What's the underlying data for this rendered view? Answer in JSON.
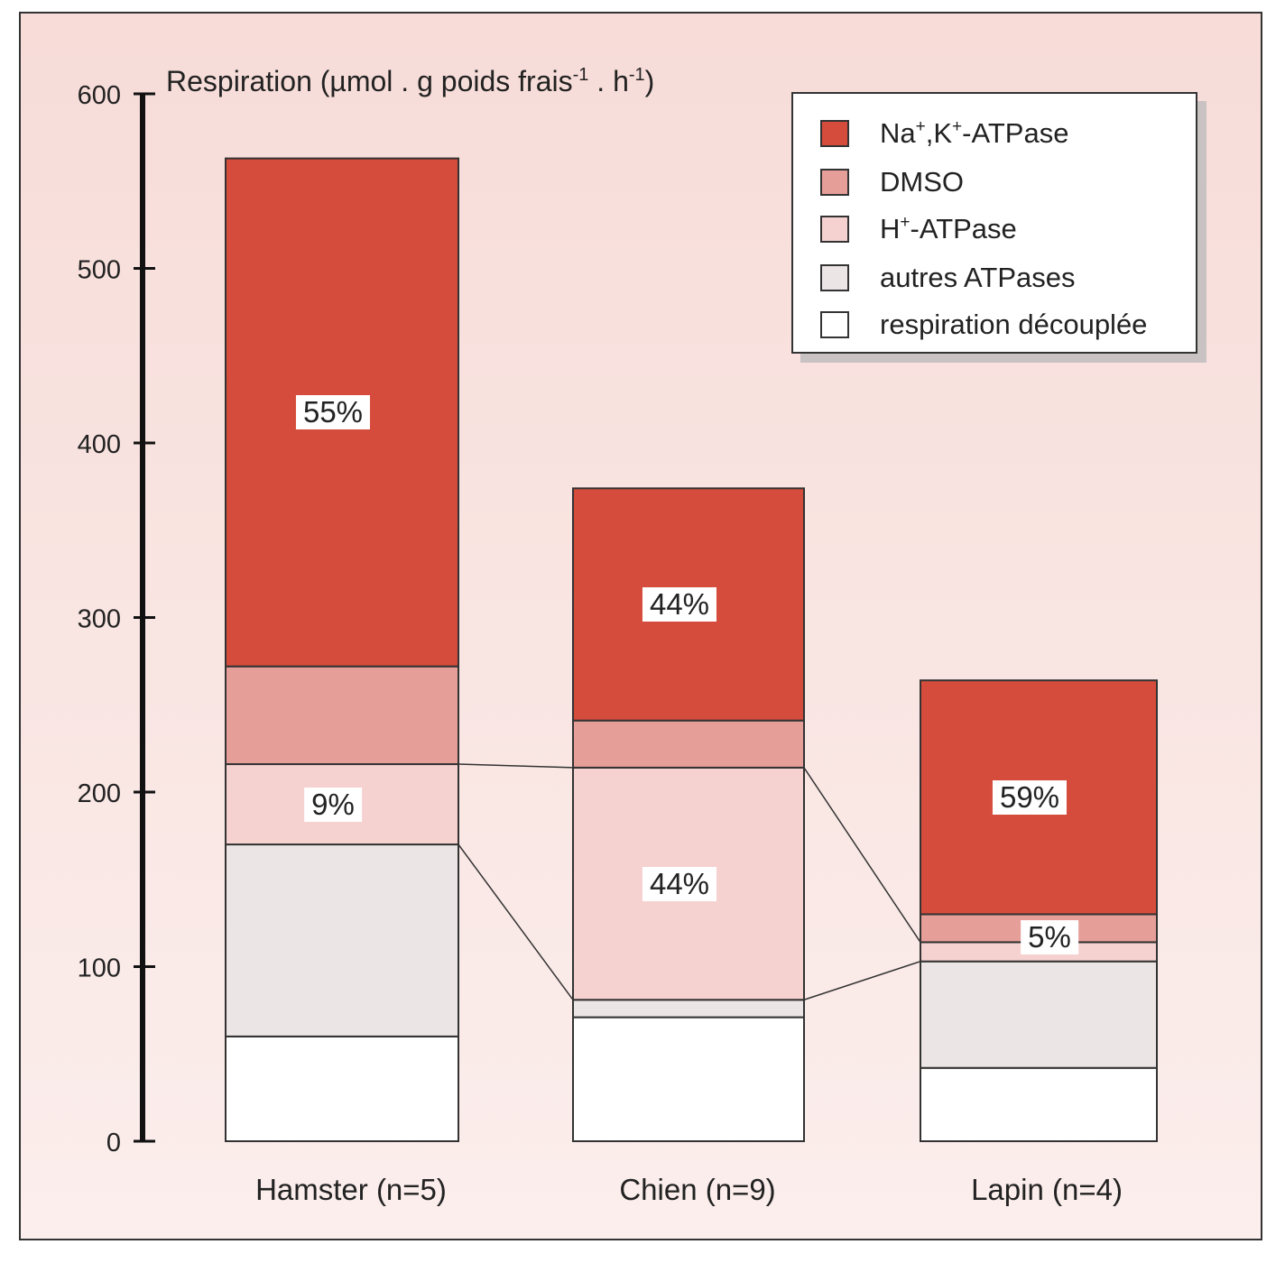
{
  "chart_data": {
    "type": "bar",
    "stacked": true,
    "ylabel": "Respiration (µmol . g poids frais-1 . h-1)",
    "ylabel_parts": [
      "Respiration (µmol . g poids frais",
      "-1",
      " . h",
      "-1",
      ")"
    ],
    "ylim": [
      0,
      600
    ],
    "yticks": [
      "0",
      "100",
      "200",
      "300",
      "400",
      "500",
      "600"
    ],
    "categories": [
      "Hamster (n=5)",
      "Chien (n=9)",
      "Lapin (n=4)"
    ],
    "series": [
      {
        "name": "respiration découplée",
        "name_parts": [
          "respiration découplée"
        ],
        "color": "#ffffff",
        "values": [
          60,
          71,
          42
        ]
      },
      {
        "name": "autres ATPases",
        "name_parts": [
          "autres ATPases"
        ],
        "color": "#ece5e5",
        "values": [
          110,
          10,
          61
        ]
      },
      {
        "name": "H+-ATPase",
        "name_parts": [
          "H",
          "+",
          "-ATPase"
        ],
        "color": "#f5d2d0",
        "values": [
          46,
          133,
          11
        ]
      },
      {
        "name": "DMSO",
        "name_parts": [
          "DMSO"
        ],
        "color": "#e59e98",
        "values": [
          56,
          27,
          16
        ]
      },
      {
        "name": "Na+,K+-ATPase",
        "name_parts": [
          "Na",
          "+",
          ",K",
          "+",
          "-ATPase"
        ],
        "color": "#d64c3c",
        "values": [
          291,
          133,
          134
        ]
      }
    ],
    "annotations": [
      {
        "category": 0,
        "series": 4,
        "text": "55%"
      },
      {
        "category": 0,
        "series": 2,
        "text": "9%"
      },
      {
        "category": 1,
        "series": 4,
        "text": "44%"
      },
      {
        "category": 1,
        "series": 2,
        "text": "44%"
      },
      {
        "category": 2,
        "series": 4,
        "text": "59%"
      },
      {
        "category": 2,
        "series": 2,
        "text": "5%",
        "offset_right": true
      }
    ],
    "connector_lines": "H+-ATPase segment boundaries linked between adjacent bars",
    "legend": "top-right",
    "grid": false
  }
}
